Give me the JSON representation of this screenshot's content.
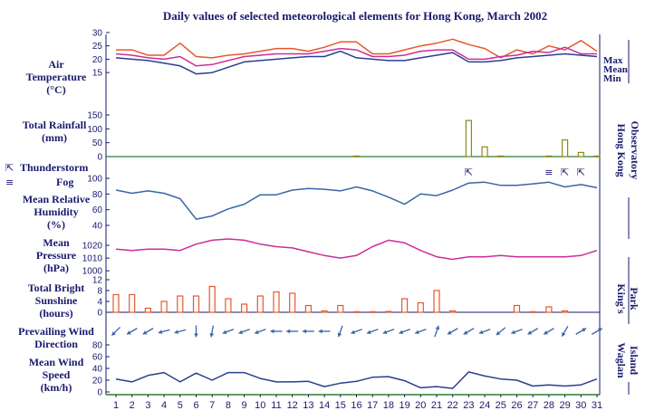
{
  "chart_data": {
    "type": "multi-panel line/bar",
    "title": "Daily values of selected meteorological elements for Hong Kong, March 2002",
    "days": [
      1,
      2,
      3,
      4,
      5,
      6,
      7,
      8,
      9,
      10,
      11,
      12,
      13,
      14,
      15,
      16,
      17,
      18,
      19,
      20,
      21,
      22,
      23,
      24,
      25,
      26,
      27,
      28,
      29,
      30,
      31
    ],
    "colors": {
      "max": "#e8572a",
      "mean": "#cc2d9a",
      "min": "#2b3f8f",
      "line": "#3b65a8",
      "pressure": "#cc2d9a",
      "rain": "#8a8a1a",
      "sun": "#e8572a",
      "axis": "#1a1a6e",
      "bottom": "#2e7d32"
    },
    "temperature": {
      "label_lines": [
        "Air",
        "Temperature",
        "(°C)"
      ],
      "ticks": [
        15,
        20,
        25,
        30
      ],
      "ylim": [
        12,
        31
      ],
      "legend": [
        "Max",
        "Mean",
        "Min"
      ],
      "max": [
        23.5,
        23.5,
        21.5,
        21.5,
        26,
        21,
        20.5,
        21.5,
        22,
        23,
        24,
        24,
        23,
        24.5,
        26.5,
        26.5,
        22,
        22,
        23.5,
        25,
        26,
        27.5,
        25.5,
        24,
        20.5,
        23.5,
        22,
        25,
        23.5,
        27,
        23
      ],
      "mean": [
        22,
        21.5,
        20.5,
        20,
        21,
        17.5,
        18,
        19.5,
        21,
        21.5,
        22,
        22,
        22,
        23,
        24,
        23.5,
        21,
        21,
        21.5,
        23,
        23.5,
        23.5,
        20,
        20,
        21,
        21.5,
        23,
        22.5,
        24.5,
        22,
        22
      ],
      "min": [
        20.5,
        20,
        19.5,
        18.5,
        17.5,
        14.5,
        15,
        17,
        19,
        19.5,
        20,
        20.5,
        21,
        21,
        23,
        20.5,
        20,
        19.5,
        19.5,
        20.5,
        21.5,
        22.5,
        19,
        19,
        19.5,
        20.5,
        21,
        21.5,
        22,
        21.5,
        21
      ]
    },
    "rainfall": {
      "label_lines": [
        "Total Rainfall",
        "(mm)"
      ],
      "ticks": [
        0,
        50,
        100,
        150
      ],
      "ylim": [
        0,
        150
      ],
      "values": [
        0,
        0,
        0,
        0,
        0,
        0,
        0,
        0,
        0,
        0,
        0,
        0,
        0,
        0,
        0,
        2,
        0,
        0,
        0,
        0,
        0,
        0,
        130,
        35,
        2,
        0,
        0,
        2,
        60,
        15,
        2
      ]
    },
    "weather": {
      "thunder_label": "Thunderstorm",
      "fog_label": "Fog",
      "thunder_symbol": "⇱",
      "fog_symbol": "≡",
      "events": [
        {
          "day": 23,
          "symbol": "⇱"
        },
        {
          "day": 28,
          "symbol": "≡"
        },
        {
          "day": 29,
          "symbol": "⇱"
        },
        {
          "day": 30,
          "symbol": "⇱"
        }
      ]
    },
    "humidity": {
      "label_lines": [
        "Mean Relative",
        "Humidity",
        "(%)"
      ],
      "ticks": [
        40,
        60,
        80,
        100
      ],
      "ylim": [
        40,
        100
      ],
      "values": [
        85,
        81,
        84,
        81,
        74,
        48,
        52,
        61,
        67,
        79,
        79,
        85,
        87,
        86,
        84,
        89,
        84,
        76,
        67,
        80,
        78,
        85,
        94,
        95,
        91,
        91,
        93,
        95,
        89,
        92,
        88
      ]
    },
    "pressure": {
      "label_lines": [
        "Mean",
        "Pressure",
        "(hPa)"
      ],
      "ticks": [
        1000,
        1010,
        1020
      ],
      "ylim": [
        998,
        1030
      ],
      "values": [
        1017,
        1016,
        1017,
        1017,
        1016,
        1021,
        1024,
        1025,
        1024,
        1021,
        1019,
        1018,
        1015,
        1012,
        1010,
        1012,
        1019,
        1024,
        1022,
        1016,
        1011,
        1009,
        1011,
        1011,
        1012,
        1011,
        1011,
        1011,
        1011,
        1012,
        1016
      ]
    },
    "sunshine": {
      "label_lines": [
        "Total Bright",
        "Sunshine",
        "(hours)"
      ],
      "ticks": [
        0,
        4,
        8,
        12
      ],
      "ylim": [
        0,
        12
      ],
      "values": [
        6.5,
        6.5,
        1.5,
        4,
        6,
        6,
        9.5,
        5,
        3,
        6,
        7.5,
        7,
        2.5,
        0.5,
        2.5,
        0.2,
        0.2,
        0.3,
        5,
        3.5,
        8,
        0.5,
        0,
        0,
        0,
        2.5,
        0.2,
        2,
        0.5,
        0,
        0
      ]
    },
    "wind_direction": {
      "label_lines": [
        "Prevailing Wind",
        "Direction"
      ],
      "degrees_to": [
        225,
        240,
        240,
        255,
        255,
        180,
        190,
        250,
        250,
        250,
        270,
        270,
        270,
        270,
        200,
        250,
        250,
        250,
        250,
        250,
        20,
        240,
        240,
        250,
        230,
        250,
        240,
        240,
        210,
        60,
        60
      ]
    },
    "wind_speed": {
      "label_lines": [
        "Mean Wind",
        "Speed",
        "(km/h)"
      ],
      "ticks": [
        0,
        20,
        40,
        60,
        80
      ],
      "ylim": [
        0,
        80
      ],
      "values": [
        22,
        17,
        28,
        33,
        17,
        32,
        20,
        33,
        33,
        23,
        17,
        17,
        18,
        9,
        15,
        18,
        25,
        26,
        19,
        7,
        9,
        6,
        34,
        27,
        22,
        20,
        10,
        12,
        10,
        12,
        22
      ]
    },
    "stations": {
      "hko": "Hong Kong Observatory",
      "kings_park": "King's Park",
      "waglan": "Waglan Island"
    }
  }
}
